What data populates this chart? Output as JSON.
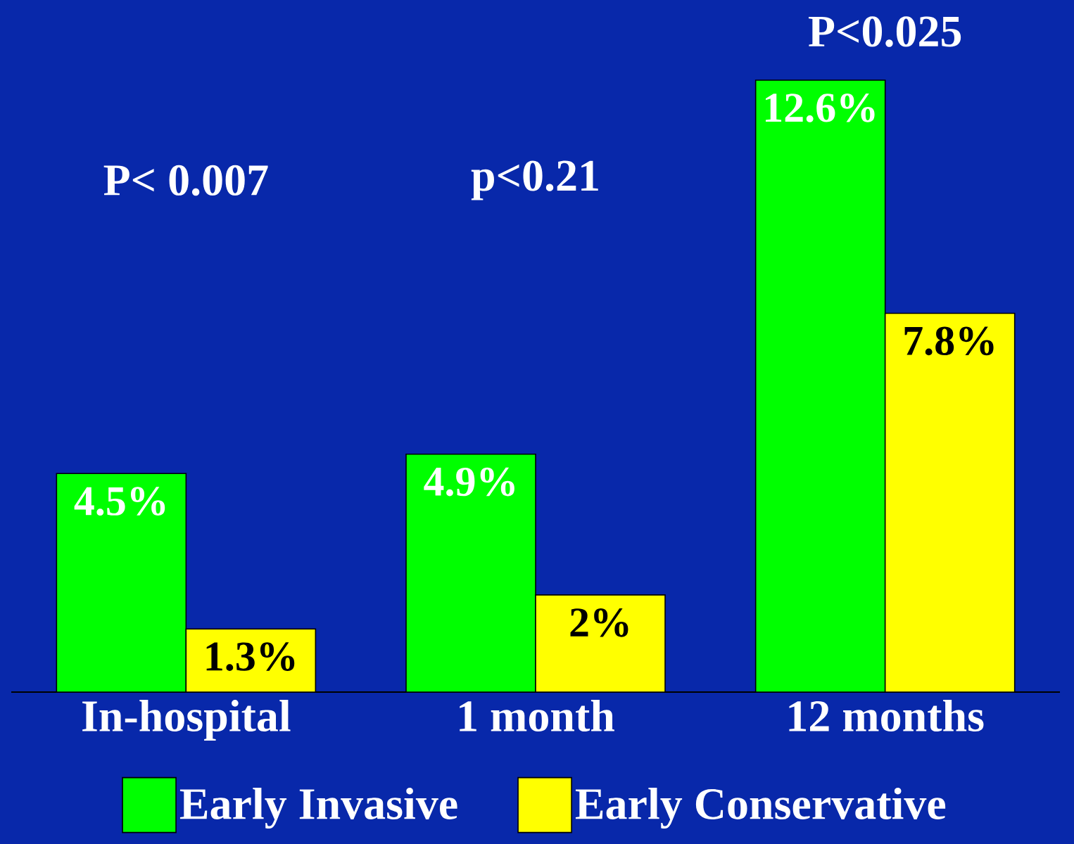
{
  "chart_data": {
    "type": "bar",
    "categories": [
      "In-hospital",
      "1 month",
      "12 months"
    ],
    "series": [
      {
        "name": "Early Invasive",
        "color": "#00ff00",
        "values": [
          4.5,
          4.9,
          12.6
        ],
        "value_labels": [
          "4.5%",
          "4.9%",
          "12.6%"
        ]
      },
      {
        "name": "Early Conservative",
        "color": "#ffff00",
        "values": [
          1.3,
          2,
          7.8
        ],
        "value_labels": [
          "1.3%",
          "2%",
          "7.8%"
        ]
      }
    ],
    "annotations": [
      "P< 0.007",
      "p<0.21",
      "P<0.025"
    ],
    "legend": "bottom"
  }
}
